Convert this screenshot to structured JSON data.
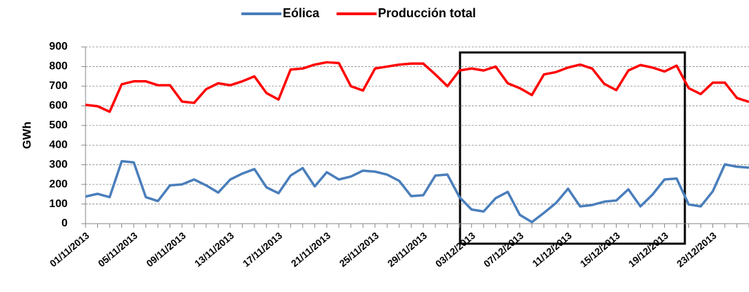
{
  "chart_data": {
    "type": "line",
    "y_label": "GWh",
    "categories": [
      "01/11/2013",
      null,
      null,
      null,
      "05/11/2013",
      null,
      null,
      null,
      "09/11/2013",
      null,
      null,
      null,
      "13/11/2013",
      null,
      null,
      null,
      "17/11/2013",
      null,
      null,
      null,
      "21/11/2013",
      null,
      null,
      null,
      "25/11/2013",
      null,
      null,
      null,
      "29/11/2013",
      null,
      null,
      null,
      "03/12/2013",
      null,
      null,
      null,
      "07/12/2013",
      null,
      null,
      null,
      "11/12/2013",
      null,
      null,
      null,
      "15/12/2013",
      null,
      null,
      null,
      "19/12/2013",
      null,
      null,
      null,
      "23/12/2013",
      null,
      null,
      null
    ],
    "series": [
      {
        "name": "Eólica",
        "color": "#4a7ebb",
        "values": [
          138,
          152,
          135,
          318,
          312,
          135,
          115,
          195,
          200,
          225,
          195,
          158,
          225,
          255,
          278,
          185,
          155,
          245,
          283,
          190,
          262,
          225,
          240,
          270,
          265,
          250,
          218,
          140,
          145,
          245,
          250,
          135,
          72,
          62,
          130,
          162,
          45,
          8,
          55,
          105,
          178,
          88,
          95,
          112,
          118,
          175,
          88,
          148,
          225,
          230,
          98,
          88,
          165,
          302,
          290,
          285
        ]
      },
      {
        "name": "Producción total",
        "color": "#ff0000",
        "values": [
          605,
          598,
          570,
          710,
          725,
          725,
          705,
          705,
          622,
          615,
          685,
          715,
          705,
          725,
          750,
          665,
          632,
          785,
          790,
          810,
          822,
          818,
          700,
          678,
          790,
          800,
          810,
          815,
          815,
          760,
          700,
          780,
          790,
          780,
          800,
          715,
          690,
          655,
          760,
          772,
          795,
          810,
          790,
          712,
          680,
          780,
          808,
          795,
          775,
          805,
          690,
          660,
          718,
          718,
          640,
          620
        ]
      }
    ],
    "ylim": [
      0,
      900
    ],
    "yticks": [
      0,
      100,
      200,
      300,
      400,
      500,
      600,
      700,
      800,
      900
    ],
    "grid": true,
    "legend": "top"
  }
}
